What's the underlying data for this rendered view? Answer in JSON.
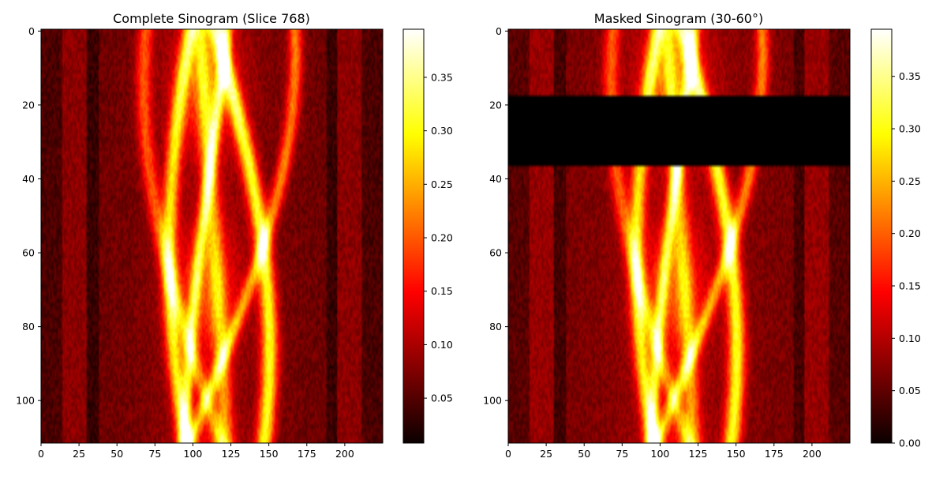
{
  "chart_data": [
    {
      "type": "heatmap",
      "title": "Complete Sinogram (Slice 768)",
      "xlabel": "",
      "ylabel": "",
      "colormap": "hot",
      "xlim": [
        0,
        225
      ],
      "ylim": [
        111.5,
        -0.5
      ],
      "xticks": [
        0,
        25,
        50,
        75,
        100,
        125,
        150,
        175,
        200
      ],
      "yticks": [
        0,
        20,
        40,
        60,
        80,
        100
      ],
      "colorbar": {
        "range": [
          0.008,
          0.395
        ],
        "ticks": [
          0.05,
          0.1,
          0.15,
          0.2,
          0.25,
          0.3,
          0.35
        ],
        "tick_labels": [
          "0.05",
          "0.10",
          "0.15",
          "0.20",
          "0.25",
          "0.30",
          "0.35"
        ]
      },
      "masked_rows": null
    },
    {
      "type": "heatmap",
      "title": "Masked Sinogram (30-60°)",
      "xlabel": "",
      "ylabel": "",
      "colormap": "hot",
      "xlim": [
        0,
        225
      ],
      "ylim": [
        111.5,
        -0.5
      ],
      "xticks": [
        0,
        25,
        50,
        75,
        100,
        125,
        150,
        175,
        200
      ],
      "yticks": [
        0,
        20,
        40,
        60,
        80,
        100
      ],
      "colorbar": {
        "range": [
          0.0,
          0.395
        ],
        "ticks": [
          0.0,
          0.05,
          0.1,
          0.15,
          0.2,
          0.25,
          0.3,
          0.35
        ],
        "tick_labels": [
          "0.00",
          "0.05",
          "0.10",
          "0.15",
          "0.20",
          "0.25",
          "0.30",
          "0.35"
        ]
      },
      "masked_rows": [
        17.5,
        36.5
      ]
    }
  ]
}
